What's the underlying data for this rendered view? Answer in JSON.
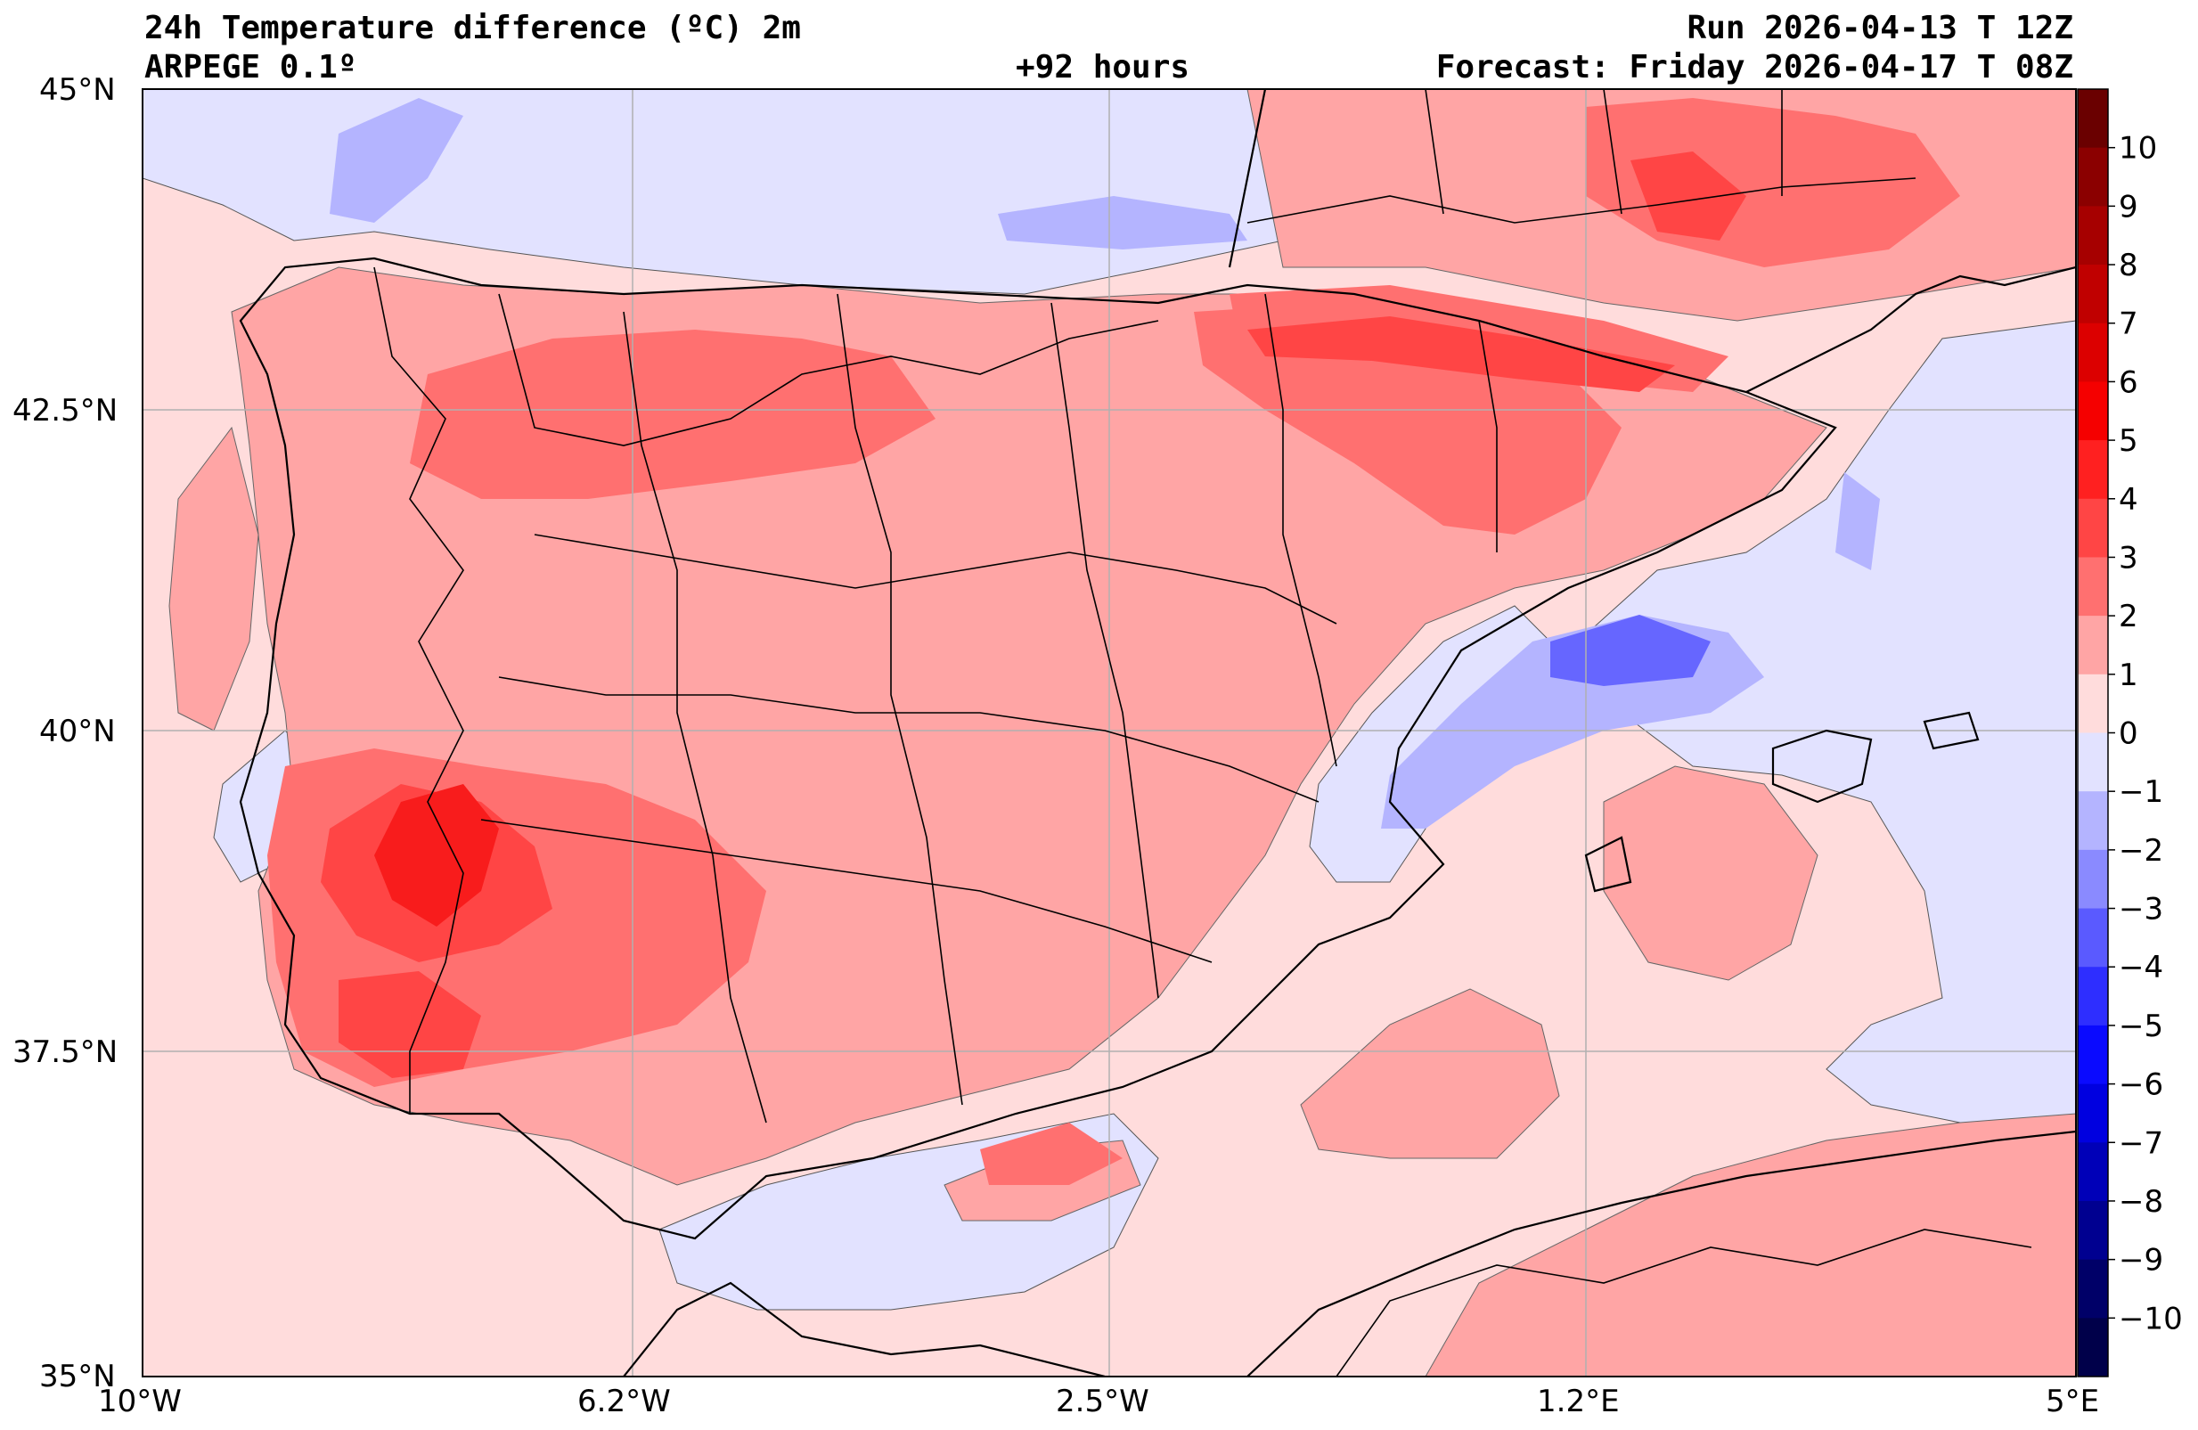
{
  "header": {
    "title": "24h Temperature difference (ºC) 2m",
    "model": "ARPEGE 0.1º",
    "lead": "+92 hours",
    "run": "Run 2026-04-13 T 12Z",
    "forecast": "Forecast: Friday 2026-04-17 T 08Z"
  },
  "axes": {
    "lat_labels": [
      "45°N",
      "42.5°N",
      "40°N",
      "37.5°N",
      "35°N"
    ],
    "lon_labels": [
      "10°W",
      "6.2°W",
      "2.5°W",
      "1.2°E",
      "5°E"
    ]
  },
  "colorbar": {
    "labels": [
      "10",
      "9",
      "8",
      "7",
      "6",
      "5",
      "4",
      "3",
      "2",
      "1",
      "0",
      "−1",
      "−2",
      "−3",
      "−4",
      "−5",
      "−6",
      "−7",
      "−8",
      "−9",
      "−10"
    ],
    "colors": [
      "#6a0000",
      "#8b0000",
      "#a60000",
      "#c00000",
      "#dc0000",
      "#f50000",
      "#ff2020",
      "#ff4545",
      "#ff7070",
      "#ffa5a5",
      "#ffdcdc",
      "#e2e2ff",
      "#b4b4ff",
      "#8a8aff",
      "#5a5aff",
      "#2e2eff",
      "#0a0aff",
      "#0000e0",
      "#0000b8",
      "#000090",
      "#000068",
      "#00004a"
    ]
  },
  "colors": {
    "background": "#ffdcdc",
    "neg1": "#e2e2ff",
    "neg2": "#b4b4ff",
    "neg3": "#7a7aff",
    "pos1": "#ffa5a5",
    "pos2": "#ff7070",
    "pos3": "#ff4545",
    "pos4": "#f81c1c"
  }
}
